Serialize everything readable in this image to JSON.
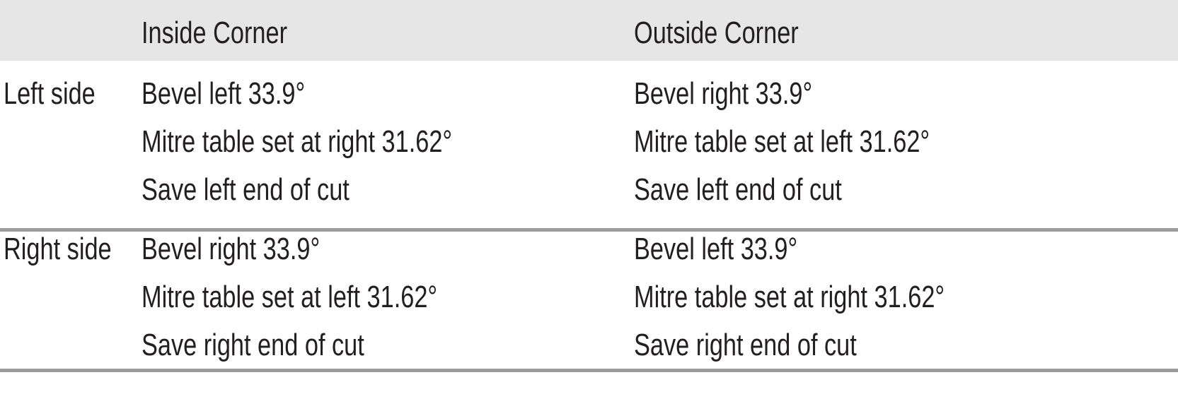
{
  "table": {
    "headers": [
      "",
      "Inside Corner",
      "Outside Corner"
    ],
    "groups": [
      {
        "label": "Left side",
        "inside": [
          "Bevel left 33.9°",
          "Mitre table set at right 31.62°",
          "Save left end of cut"
        ],
        "outside": [
          "Bevel right 33.9°",
          "Mitre table set at left 31.62°",
          "Save left end of cut"
        ]
      },
      {
        "label": "Right side",
        "inside": [
          "Bevel right 33.9°",
          "Mitre table set at left 31.62°",
          "Save right end of cut"
        ],
        "outside": [
          "Bevel left 33.9°",
          "Mitre table set at right 31.62°",
          "Save right end of cut"
        ]
      }
    ]
  }
}
